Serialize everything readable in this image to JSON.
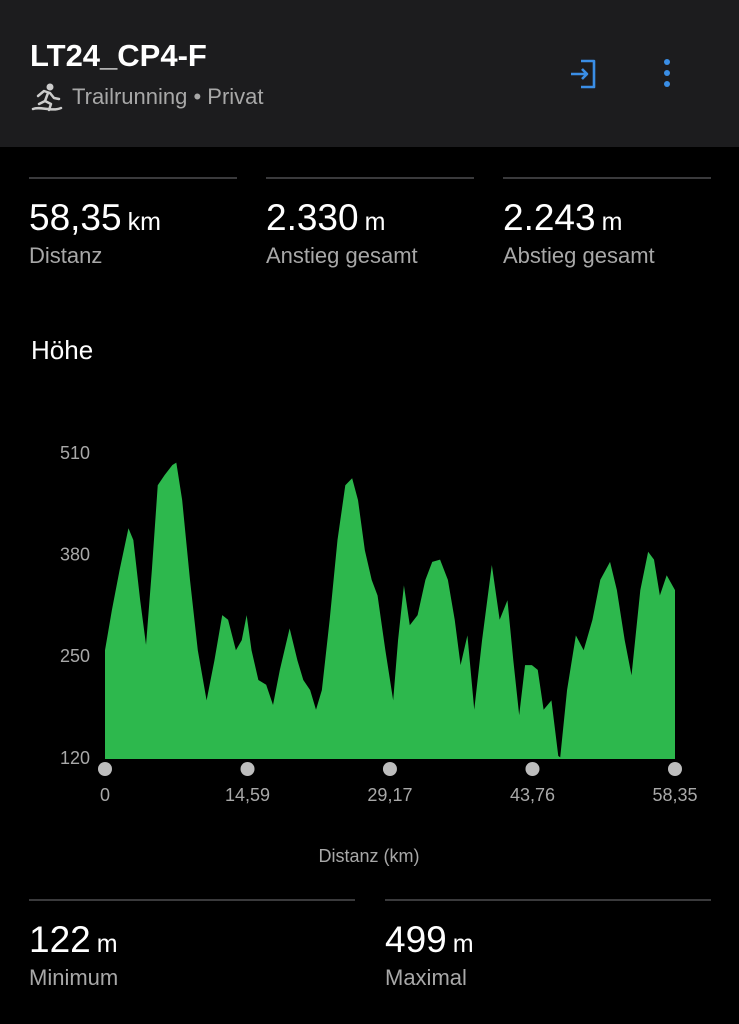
{
  "header": {
    "title": "LT24_CP4-F",
    "subtitle": "Trailrunning • Privat"
  },
  "stats": [
    {
      "value": "58,35",
      "unit": "km",
      "label": "Distanz"
    },
    {
      "value": "2.330",
      "unit": "m",
      "label": "Anstieg gesamt"
    },
    {
      "value": "2.243",
      "unit": "m",
      "label": "Abstieg gesamt"
    }
  ],
  "chart_data": {
    "type": "area",
    "title": "Höhe",
    "xlabel": "Distanz (km)",
    "color": "#2db84d",
    "x": [
      0,
      0.7,
      1.5,
      2.4,
      2.9,
      3.6,
      4.2,
      4.8,
      5.4,
      6.1,
      6.9,
      7.3,
      7.9,
      8.7,
      9.5,
      10.4,
      11.2,
      12.0,
      12.6,
      13.4,
      14.0,
      14.5,
      15.0,
      15.7,
      16.5,
      17.2,
      17.9,
      18.9,
      19.7,
      20.3,
      21.0,
      21.6,
      22.2,
      23.0,
      23.8,
      24.6,
      25.3,
      25.9,
      26.6,
      27.3,
      27.9,
      28.7,
      29.5,
      30.0,
      30.6,
      31.2,
      32.0,
      32.8,
      33.5,
      34.3,
      35.1,
      35.8,
      36.4,
      37.1,
      37.8,
      38.6,
      39.6,
      40.4,
      41.2,
      41.8,
      42.4,
      43.0,
      43.7,
      44.3,
      44.9,
      45.7,
      46.4,
      46.6,
      47.3,
      48.2,
      49.0,
      49.9,
      50.7,
      51.7,
      52.4,
      53.2,
      53.9,
      54.8,
      55.6,
      56.2,
      56.8,
      57.5,
      58.35
    ],
    "values": [
      259,
      310,
      362,
      415,
      400,
      323,
      266,
      362,
      470,
      483,
      496,
      499,
      451,
      349,
      259,
      195,
      246,
      304,
      298,
      259,
      272,
      304,
      259,
      221,
      215,
      189,
      234,
      287,
      246,
      221,
      208,
      183,
      208,
      298,
      400,
      470,
      479,
      451,
      387,
      349,
      329,
      259,
      195,
      272,
      342,
      291,
      304,
      349,
      372,
      375,
      349,
      298,
      240,
      278,
      183,
      272,
      368,
      298,
      323,
      246,
      176,
      240,
      240,
      234,
      183,
      195,
      124,
      122,
      208,
      278,
      259,
      298,
      349,
      372,
      336,
      272,
      227,
      336,
      385,
      375,
      329,
      355,
      336
    ],
    "xlim": [
      0,
      58.35
    ],
    "xticks": [
      0,
      {
        "value": 14.59,
        "label": "14,59"
      },
      {
        "value": 29.17,
        "label": "29,17"
      },
      {
        "value": 43.76,
        "label": "43,76"
      },
      {
        "value": 58.35,
        "label": "58,35"
      }
    ],
    "ylim": [
      120,
      510
    ],
    "yticks": [
      120,
      250,
      380,
      510
    ]
  },
  "extremes": [
    {
      "value": "122",
      "unit": "m",
      "label": "Minimum"
    },
    {
      "value": "499",
      "unit": "m",
      "label": "Maximal"
    }
  ]
}
